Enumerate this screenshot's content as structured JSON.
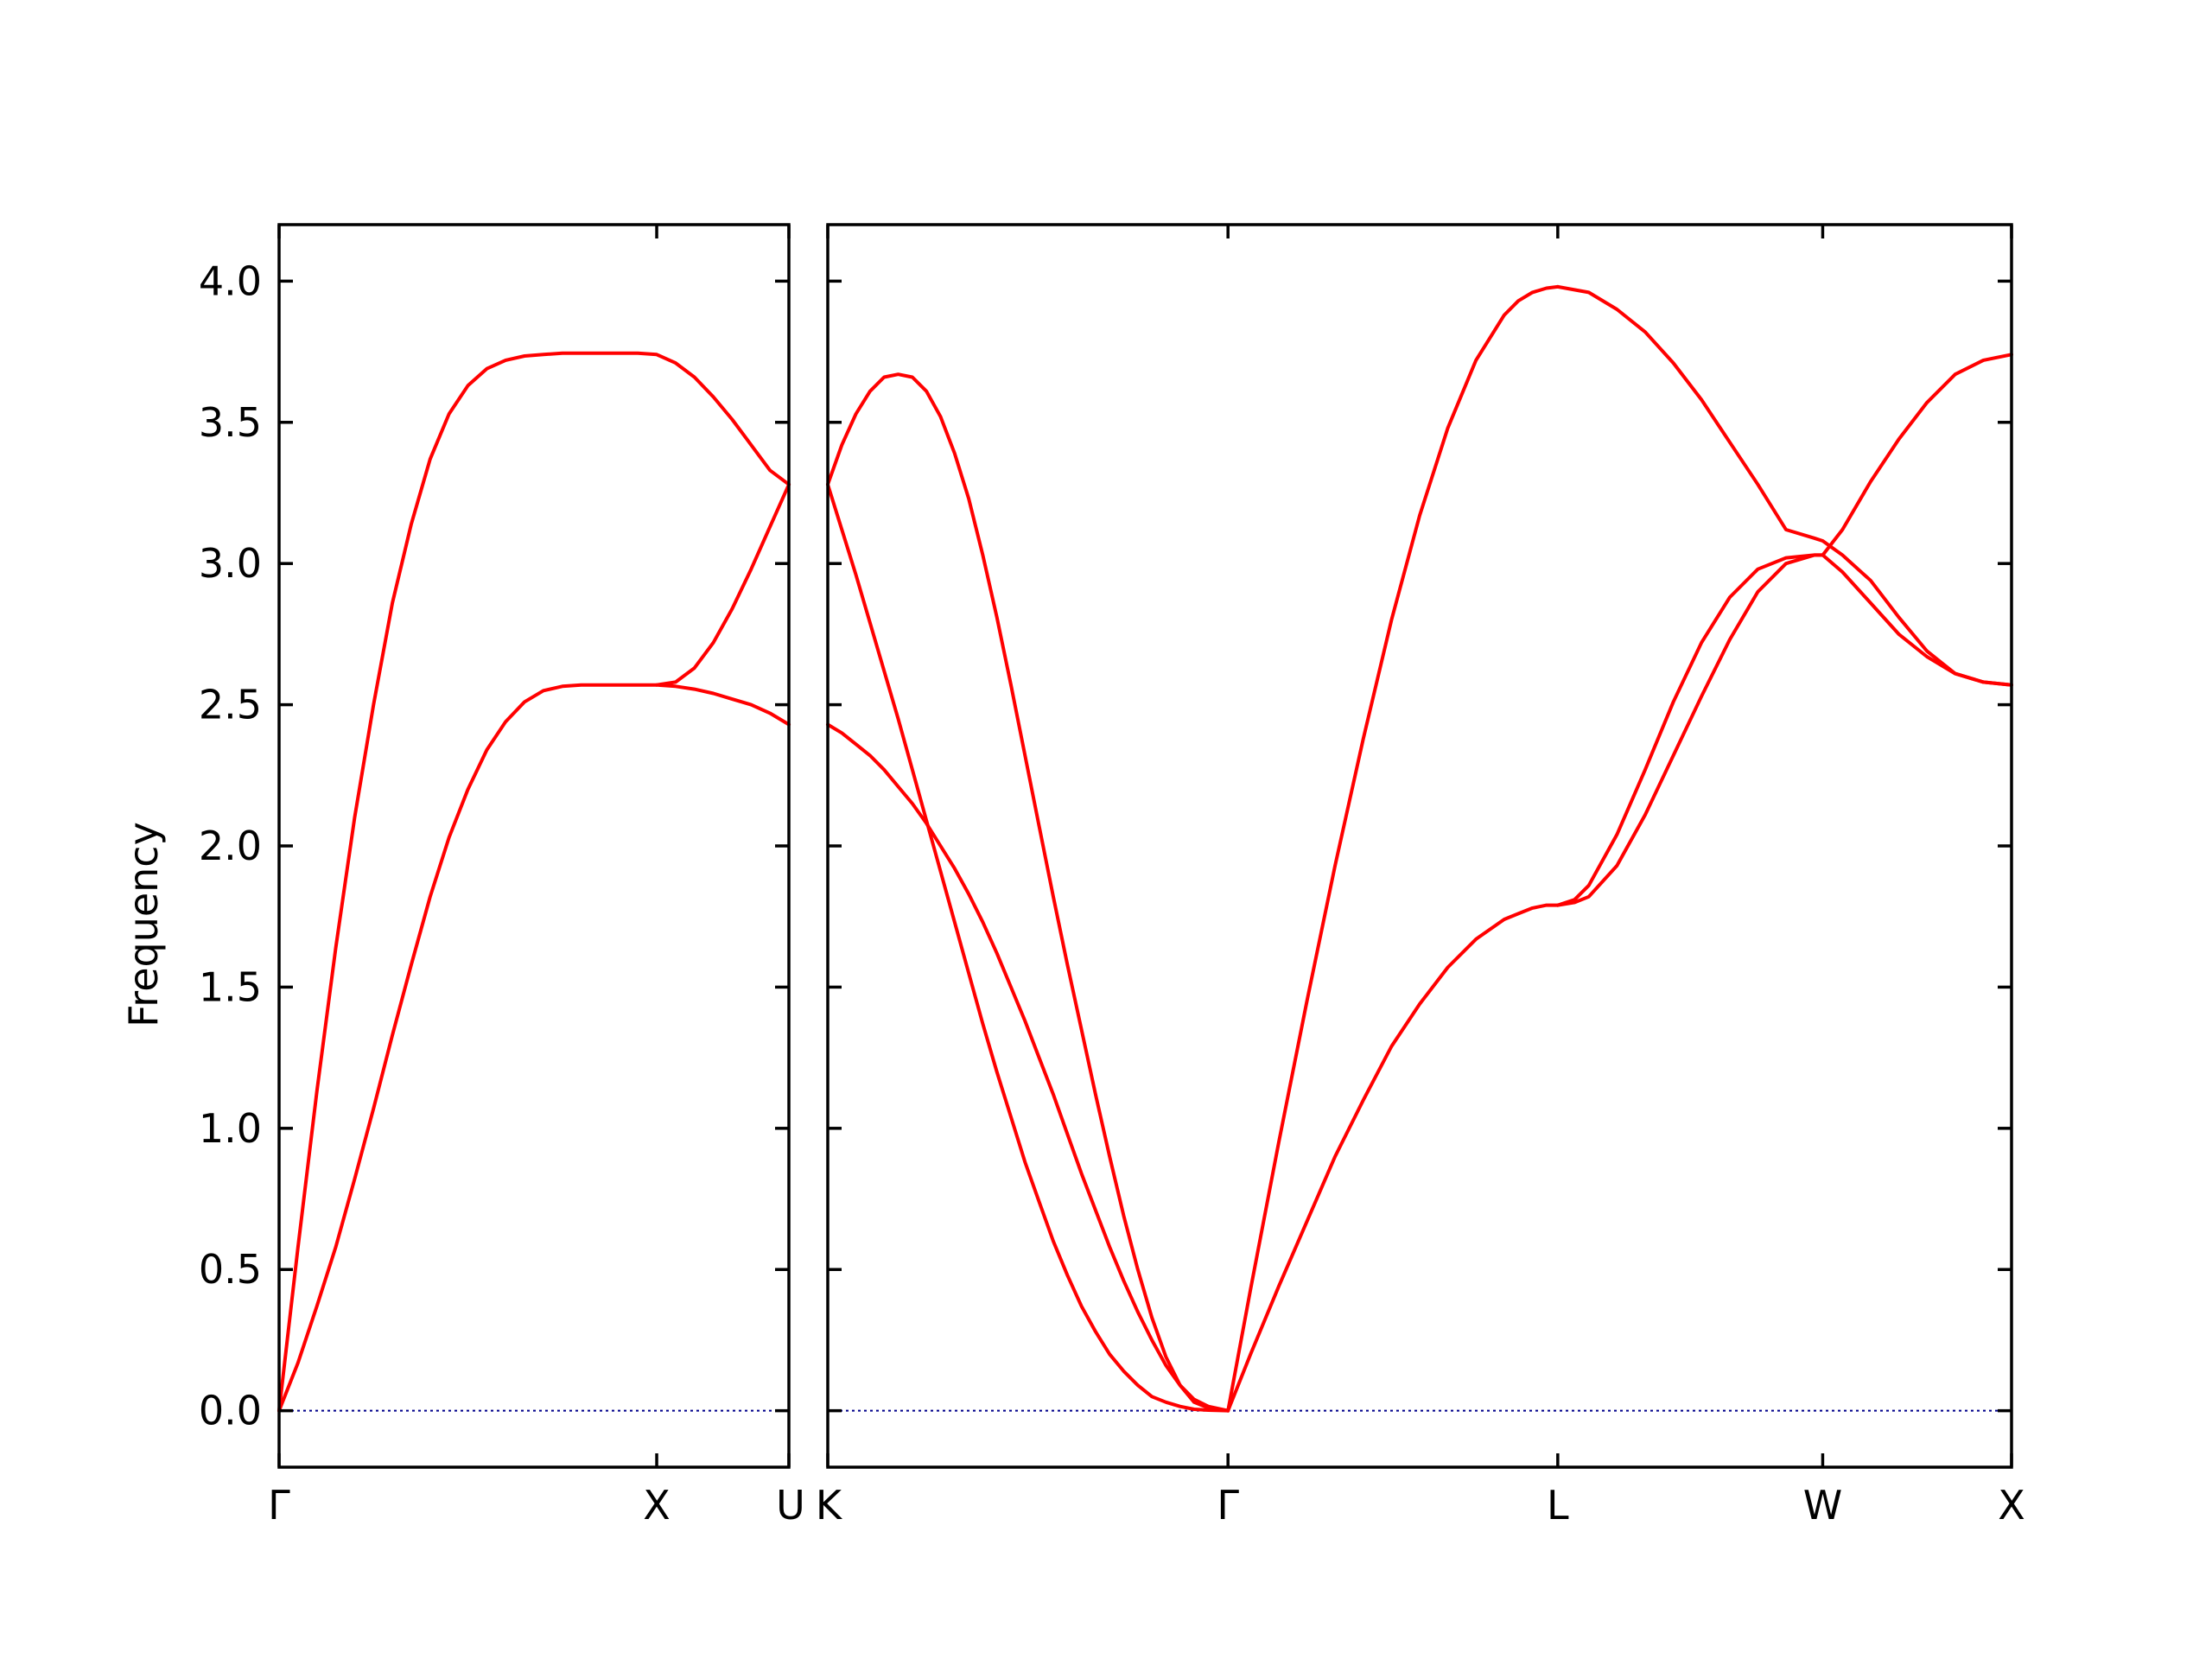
{
  "chart_data": {
    "type": "line",
    "ylabel": "Frequency",
    "ylim": [
      -0.2,
      4.2
    ],
    "yticks": [
      "0.0",
      "0.5",
      "1.0",
      "1.5",
      "2.0",
      "2.5",
      "3.0",
      "3.5",
      "4.0"
    ],
    "colors": {
      "bands": "#ff0000",
      "zero_line": "#00008b",
      "frame": "#000000"
    },
    "panels": [
      {
        "xlim": [
          0,
          1.35
        ],
        "ticks": [
          {
            "x": 0,
            "label": "Γ"
          },
          {
            "x": 1.0,
            "label": "X"
          },
          {
            "x": 1.35,
            "label": "U"
          }
        ],
        "series": [
          {
            "x": [
              0,
              0.05,
              0.1,
              0.15,
              0.2,
              0.25,
              0.3,
              0.35,
              0.4,
              0.45,
              0.5,
              0.55,
              0.6,
              0.65,
              0.7,
              0.75,
              0.8,
              0.85,
              0.9,
              0.95,
              1.0,
              1.05,
              1.1,
              1.15,
              1.2,
              1.25,
              1.3,
              1.35
            ],
            "y": [
              0.0,
              0.58,
              1.13,
              1.64,
              2.1,
              2.5,
              2.86,
              3.14,
              3.37,
              3.53,
              3.63,
              3.69,
              3.72,
              3.735,
              3.74,
              3.745,
              3.745,
              3.745,
              3.745,
              3.745,
              3.74,
              3.71,
              3.66,
              3.59,
              3.51,
              3.42,
              3.33,
              3.28
            ]
          },
          {
            "x": [
              0,
              0.05,
              0.1,
              0.15,
              0.2,
              0.25,
              0.3,
              0.35,
              0.4,
              0.45,
              0.5,
              0.55,
              0.6,
              0.65,
              0.7,
              0.75,
              0.8,
              0.85,
              0.9,
              0.95,
              1.0,
              1.05,
              1.1,
              1.15,
              1.2,
              1.25,
              1.3,
              1.35
            ],
            "y": [
              0.0,
              0.17,
              0.37,
              0.58,
              0.82,
              1.07,
              1.33,
              1.58,
              1.82,
              2.03,
              2.2,
              2.34,
              2.44,
              2.51,
              2.55,
              2.565,
              2.57,
              2.57,
              2.57,
              2.57,
              2.57,
              2.58,
              2.63,
              2.72,
              2.84,
              2.98,
              3.13,
              3.28
            ]
          },
          {
            "x": [
              1.0,
              1.05,
              1.1,
              1.15,
              1.2,
              1.25,
              1.3,
              1.35
            ],
            "y": [
              2.57,
              2.565,
              2.555,
              2.54,
              2.52,
              2.5,
              2.47,
              2.43
            ]
          }
        ]
      },
      {
        "xlim": [
          0,
          4.2
        ],
        "ticks": [
          {
            "x": 0,
            "label": "K"
          },
          {
            "x": 1.42,
            "label": "Γ"
          },
          {
            "x": 2.59,
            "label": "L"
          },
          {
            "x": 3.53,
            "label": "W"
          },
          {
            "x": 4.2,
            "label": "X"
          }
        ],
        "series": [
          {
            "x": [
              0,
              0.05,
              0.1,
              0.15,
              0.2,
              0.25,
              0.3,
              0.35,
              0.4,
              0.45,
              0.5,
              0.55,
              0.6,
              0.65,
              0.7,
              0.75,
              0.8,
              0.85,
              0.9,
              0.95,
              1.0,
              1.05,
              1.1,
              1.15,
              1.2,
              1.25,
              1.3,
              1.35,
              1.42
            ],
            "y": [
              3.28,
              3.42,
              3.53,
              3.61,
              3.66,
              3.67,
              3.66,
              3.61,
              3.52,
              3.39,
              3.23,
              3.03,
              2.81,
              2.57,
              2.32,
              2.07,
              1.82,
              1.58,
              1.35,
              1.12,
              0.9,
              0.69,
              0.5,
              0.33,
              0.19,
              0.09,
              0.03,
              0.01,
              0.0
            ]
          },
          {
            "x": [
              0,
              0.05,
              0.1,
              0.15,
              0.2,
              0.25,
              0.3,
              0.35,
              0.4,
              0.45,
              0.5,
              0.55,
              0.6,
              0.65,
              0.7,
              0.75,
              0.8,
              0.85,
              0.9,
              0.95,
              1.0,
              1.05,
              1.1,
              1.15,
              1.2,
              1.25,
              1.3,
              1.35,
              1.42
            ],
            "y": [
              3.28,
              3.12,
              2.96,
              2.79,
              2.62,
              2.45,
              2.27,
              2.09,
              1.91,
              1.73,
              1.55,
              1.37,
              1.2,
              1.04,
              0.88,
              0.74,
              0.6,
              0.48,
              0.37,
              0.28,
              0.2,
              0.14,
              0.09,
              0.05,
              0.03,
              0.015,
              0.005,
              0.002,
              0.0
            ]
          },
          {
            "x": [
              0,
              0.05,
              0.1,
              0.15,
              0.2,
              0.25,
              0.3,
              0.35,
              0.4,
              0.45,
              0.5,
              0.55,
              0.6,
              0.65,
              0.7,
              0.75,
              0.8,
              0.85,
              0.9,
              0.95,
              1.0,
              1.05,
              1.1,
              1.15,
              1.2,
              1.25,
              1.3,
              1.35,
              1.42
            ],
            "y": [
              2.43,
              2.4,
              2.36,
              2.32,
              2.27,
              2.21,
              2.15,
              2.08,
              2.0,
              1.92,
              1.83,
              1.73,
              1.62,
              1.5,
              1.38,
              1.25,
              1.12,
              0.98,
              0.84,
              0.71,
              0.58,
              0.46,
              0.35,
              0.25,
              0.16,
              0.09,
              0.04,
              0.015,
              0.0
            ]
          },
          {
            "x": [
              1.42,
              1.5,
              1.6,
              1.7,
              1.8,
              1.9,
              2.0,
              2.1,
              2.2,
              2.3,
              2.4,
              2.45,
              2.5,
              2.55,
              2.59
            ],
            "y": [
              0.0,
              0.43,
              0.95,
              1.45,
              1.93,
              2.38,
              2.8,
              3.17,
              3.48,
              3.72,
              3.88,
              3.93,
              3.96,
              3.975,
              3.98
            ]
          },
          {
            "x": [
              1.42,
              1.5,
              1.6,
              1.7,
              1.8,
              1.9,
              2.0,
              2.1,
              2.2,
              2.3,
              2.4,
              2.45,
              2.5,
              2.55,
              2.59
            ],
            "y": [
              0.0,
              0.2,
              0.44,
              0.67,
              0.9,
              1.1,
              1.29,
              1.44,
              1.57,
              1.67,
              1.74,
              1.76,
              1.78,
              1.79,
              1.79
            ]
          },
          {
            "x": [
              2.59,
              2.7,
              2.8,
              2.9,
              3.0,
              3.1,
              3.2,
              3.3,
              3.4,
              3.5,
              3.53,
              3.6,
              3.7,
              3.8,
              3.9,
              4.0,
              4.1,
              4.2
            ],
            "y": [
              3.98,
              3.96,
              3.9,
              3.82,
              3.71,
              3.58,
              3.43,
              3.28,
              3.12,
              3.09,
              3.08,
              3.03,
              2.94,
              2.81,
              2.69,
              2.61,
              2.58,
              2.57
            ]
          },
          {
            "x": [
              2.59,
              2.65,
              2.7,
              2.8,
              2.9,
              3.0,
              3.1,
              3.2,
              3.3,
              3.4,
              3.5,
              3.53,
              3.6,
              3.7,
              3.8,
              3.9,
              4.0,
              4.1,
              4.2
            ],
            "y": [
              1.79,
              1.81,
              1.86,
              2.04,
              2.27,
              2.51,
              2.72,
              2.88,
              2.98,
              3.02,
              3.03,
              3.03,
              2.97,
              2.86,
              2.75,
              2.67,
              2.61,
              2.58,
              2.57
            ]
          },
          {
            "x": [
              2.59,
              2.65,
              2.7,
              2.8,
              2.9,
              3.0,
              3.1,
              3.2,
              3.3,
              3.4,
              3.5,
              3.53,
              3.6,
              3.7,
              3.8,
              3.9,
              4.0,
              4.1,
              4.2
            ],
            "y": [
              1.79,
              1.8,
              1.82,
              1.93,
              2.11,
              2.32,
              2.53,
              2.73,
              2.9,
              3.0,
              3.03,
              3.03,
              3.12,
              3.29,
              3.44,
              3.57,
              3.67,
              3.72,
              3.74
            ]
          }
        ]
      }
    ]
  }
}
